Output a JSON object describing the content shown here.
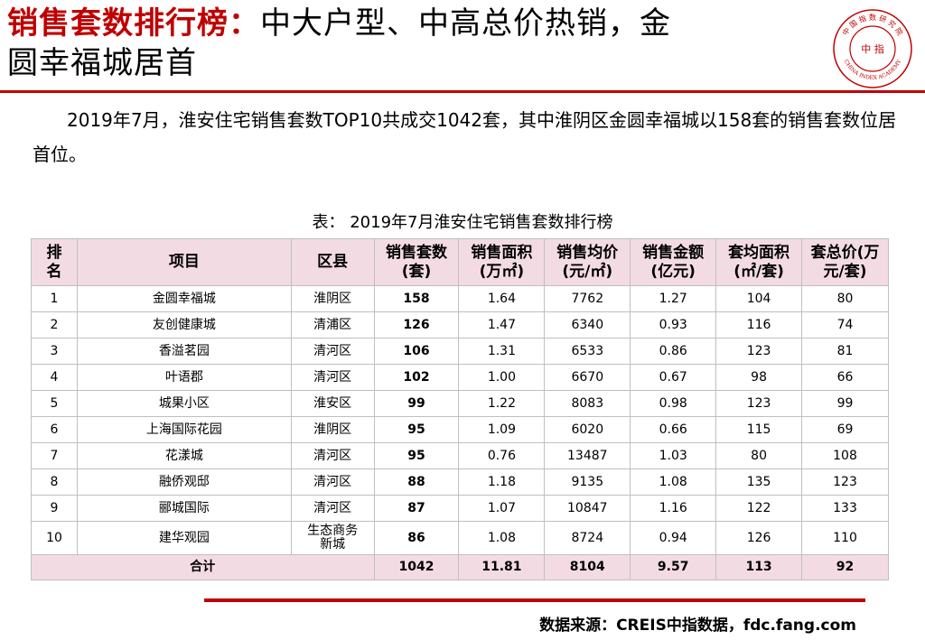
{
  "title": {
    "highlight": "销售套数排行榜：",
    "line1_rest": "中大户型、中高总价热销，金",
    "line2": "圆幸福城居首"
  },
  "logo": {
    "center_text": "中 指",
    "ring_top": "中 国 指 数 研 究 院",
    "ring_bottom": "CHINA INDEX ACADEMY",
    "color": "#c00000"
  },
  "intro": {
    "paragraph": "2019年7月，淮安住宅销售套数TOP10共成交1042套，其中淮阴区金圆幸福城以158套的销售套数位居首位。"
  },
  "table": {
    "caption": "表： 2019年7月淮安住宅销售套数排行榜",
    "headers": {
      "rank": "排名",
      "project": "项目",
      "district": "区县",
      "units": "销售套数(套)",
      "area": "销售面积(万㎡)",
      "avg_price": "销售均价(元/㎡)",
      "amount": "销售金额(亿元)",
      "unit_area": "套均面积(㎡/套)",
      "total_price": "套总价(万元/套)"
    },
    "rows": [
      {
        "rank": "1",
        "project": "金圆幸福城",
        "district": "淮阴区",
        "units": "158",
        "area": "1.64",
        "avg_price": "7762",
        "amount": "1.27",
        "unit_area": "104",
        "total_price": "80"
      },
      {
        "rank": "2",
        "project": "友创健康城",
        "district": "清浦区",
        "units": "126",
        "area": "1.47",
        "avg_price": "6340",
        "amount": "0.93",
        "unit_area": "116",
        "total_price": "74"
      },
      {
        "rank": "3",
        "project": "香溢茗园",
        "district": "清河区",
        "units": "106",
        "area": "1.31",
        "avg_price": "6533",
        "amount": "0.86",
        "unit_area": "123",
        "total_price": "81"
      },
      {
        "rank": "4",
        "project": "叶语郡",
        "district": "清河区",
        "units": "102",
        "area": "1.00",
        "avg_price": "6670",
        "amount": "0.67",
        "unit_area": "98",
        "total_price": "66"
      },
      {
        "rank": "5",
        "project": "城果小区",
        "district": "淮安区",
        "units": "99",
        "area": "1.22",
        "avg_price": "8083",
        "amount": "0.98",
        "unit_area": "123",
        "total_price": "99"
      },
      {
        "rank": "6",
        "project": "上海国际花园",
        "district": "淮阴区",
        "units": "95",
        "area": "1.09",
        "avg_price": "6020",
        "amount": "0.66",
        "unit_area": "115",
        "total_price": "69"
      },
      {
        "rank": "7",
        "project": "花漾城",
        "district": "清河区",
        "units": "95",
        "area": "0.76",
        "avg_price": "13487",
        "amount": "1.03",
        "unit_area": "80",
        "total_price": "108"
      },
      {
        "rank": "8",
        "project": "融侨观邸",
        "district": "清河区",
        "units": "88",
        "area": "1.18",
        "avg_price": "9135",
        "amount": "1.08",
        "unit_area": "135",
        "total_price": "123"
      },
      {
        "rank": "9",
        "project": "郦城国际",
        "district": "清河区",
        "units": "87",
        "area": "1.07",
        "avg_price": "10847",
        "amount": "1.16",
        "unit_area": "122",
        "total_price": "133"
      },
      {
        "rank": "10",
        "project": "建华观园",
        "district": "生态商务新城",
        "units": "86",
        "area": "1.08",
        "avg_price": "8724",
        "amount": "0.94",
        "unit_area": "126",
        "total_price": "110"
      }
    ],
    "total": {
      "label": "合计",
      "units": "1042",
      "area": "11.81",
      "avg_price": "8104",
      "amount": "9.57",
      "unit_area": "113",
      "total_price": "92"
    }
  },
  "source": "数据来源：CREIS中指数据，fdc.fang.com",
  "colors": {
    "accent": "#c00000",
    "header_bg": "#f3dbe3",
    "grid": "#bfbfbf"
  }
}
